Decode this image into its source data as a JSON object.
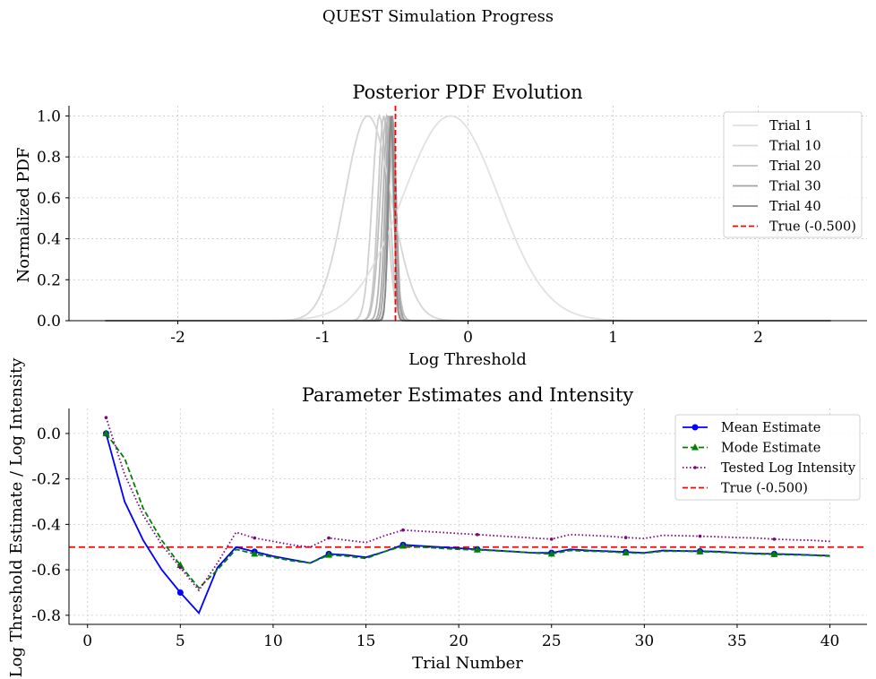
{
  "figure": {
    "suptitle": "QUEST Simulation Progress"
  },
  "chart_data": [
    {
      "type": "line",
      "title": "Posterior PDF Evolution",
      "xlabel": "Log Threshold",
      "ylabel": "Normalized PDF",
      "xlim": [
        -2.75,
        2.75
      ],
      "ylim": [
        0,
        1.05
      ],
      "xticks": [
        -2,
        -1,
        0,
        1,
        2
      ],
      "xtick_labels": [
        "-2",
        "-1",
        "0",
        "1",
        "2"
      ],
      "yticks": [
        0,
        0.2,
        0.4,
        0.6,
        0.8,
        1.0
      ],
      "ytick_labels": [
        "0.0",
        "0.2",
        "0.4",
        "0.6",
        "0.8",
        "1.0"
      ],
      "grid": true,
      "x_domain": [
        -2.5,
        2.5
      ],
      "true_line": {
        "x": -0.5,
        "color": "#ff0000",
        "style": "dashed"
      },
      "series": [
        {
          "name": "Trial 1",
          "peak": -0.12,
          "sigma": 0.33,
          "color": "#e1e1e1"
        },
        {
          "name": "Trial 10",
          "peak": -0.69,
          "sigma": 0.16,
          "color": "#d6d6d6"
        },
        {
          "name": "Trial 20",
          "peak": -0.56,
          "sigma": 0.045,
          "color": "#c0c0c0"
        },
        {
          "name": "Trial 30",
          "peak": -0.53,
          "sigma": 0.028,
          "color": "#a4a4a4"
        },
        {
          "name": "Trial 40",
          "peak": -0.53,
          "sigma": 0.02,
          "color": "#888888"
        }
      ],
      "extra_curves": [
        {
          "peak": -0.61,
          "sigma": 0.05,
          "color": "#d0d0d0"
        },
        {
          "peak": -0.58,
          "sigma": 0.04,
          "color": "#c8c8c8"
        },
        {
          "peak": -0.55,
          "sigma": 0.035,
          "color": "#b4b4b4"
        },
        {
          "peak": -0.54,
          "sigma": 0.03,
          "color": "#acacac"
        },
        {
          "peak": -0.52,
          "sigma": 0.025,
          "color": "#9a9a9a"
        }
      ],
      "legend": {
        "position": "upper-right",
        "labels": [
          "Trial 1",
          "Trial 10",
          "Trial 20",
          "Trial 30",
          "Trial 40",
          "True (-0.500)"
        ]
      }
    },
    {
      "type": "line",
      "title": "Parameter Estimates and Intensity",
      "xlabel": "Trial Number",
      "ylabel": "Log Threshold Estimate / Log Intensity",
      "xlim": [
        -1,
        42
      ],
      "ylim": [
        -0.84,
        0.11
      ],
      "xticks": [
        0,
        5,
        10,
        15,
        20,
        25,
        30,
        35,
        40
      ],
      "xtick_labels": [
        "0",
        "5",
        "10",
        "15",
        "20",
        "25",
        "30",
        "35",
        "40"
      ],
      "yticks": [
        0,
        -0.2,
        -0.4,
        -0.6,
        -0.8
      ],
      "ytick_labels": [
        "0.0",
        "-0.2",
        "-0.4",
        "-0.6",
        "-0.8"
      ],
      "grid": true,
      "true_line": {
        "y": -0.5,
        "color": "#ff0000",
        "style": "dashed"
      },
      "x": [
        1,
        2,
        3,
        4,
        5,
        6,
        7,
        8,
        9,
        10,
        11,
        12,
        13,
        14,
        15,
        16,
        17,
        18,
        19,
        20,
        21,
        22,
        23,
        24,
        25,
        26,
        27,
        28,
        29,
        30,
        31,
        32,
        33,
        34,
        35,
        36,
        37,
        38,
        39,
        40
      ],
      "series": [
        {
          "name": "Mean Estimate",
          "color": "#0000ff",
          "style": "solid",
          "marker": "circle",
          "marker_every": 4,
          "values": [
            0.0,
            -0.3,
            -0.47,
            -0.6,
            -0.7,
            -0.79,
            -0.59,
            -0.5,
            -0.52,
            -0.54,
            -0.555,
            -0.57,
            -0.53,
            -0.535,
            -0.545,
            -0.52,
            -0.49,
            -0.495,
            -0.5,
            -0.505,
            -0.51,
            -0.515,
            -0.52,
            -0.525,
            -0.525,
            -0.51,
            -0.515,
            -0.518,
            -0.522,
            -0.525,
            -0.515,
            -0.517,
            -0.518,
            -0.52,
            -0.525,
            -0.528,
            -0.53,
            -0.532,
            -0.535,
            -0.538
          ]
        },
        {
          "name": "Mode Estimate",
          "color": "#008000",
          "style": "dashed",
          "marker": "triangle",
          "marker_every": 4,
          "values": [
            0.0,
            -0.11,
            -0.33,
            -0.47,
            -0.58,
            -0.68,
            -0.6,
            -0.51,
            -0.53,
            -0.545,
            -0.56,
            -0.57,
            -0.535,
            -0.54,
            -0.55,
            -0.52,
            -0.495,
            -0.5,
            -0.505,
            -0.51,
            -0.512,
            -0.516,
            -0.52,
            -0.526,
            -0.53,
            -0.515,
            -0.518,
            -0.52,
            -0.525,
            -0.527,
            -0.518,
            -0.518,
            -0.52,
            -0.522,
            -0.526,
            -0.53,
            -0.532,
            -0.534,
            -0.536,
            -0.54
          ]
        },
        {
          "name": "Tested Log Intensity",
          "color": "#800080",
          "style": "dotted",
          "marker": "dot",
          "marker_every": 4,
          "values": [
            0.07,
            -0.18,
            -0.36,
            -0.49,
            -0.59,
            -0.69,
            -0.57,
            -0.435,
            -0.46,
            -0.475,
            -0.49,
            -0.5,
            -0.46,
            -0.47,
            -0.48,
            -0.45,
            -0.425,
            -0.43,
            -0.435,
            -0.44,
            -0.445,
            -0.45,
            -0.455,
            -0.46,
            -0.465,
            -0.445,
            -0.448,
            -0.452,
            -0.458,
            -0.462,
            -0.448,
            -0.45,
            -0.452,
            -0.455,
            -0.458,
            -0.46,
            -0.465,
            -0.468,
            -0.47,
            -0.475
          ]
        }
      ],
      "legend": {
        "position": "upper-right",
        "labels": [
          "Mean Estimate",
          "Mode Estimate",
          "Tested Log Intensity",
          "True (-0.500)"
        ]
      }
    }
  ]
}
